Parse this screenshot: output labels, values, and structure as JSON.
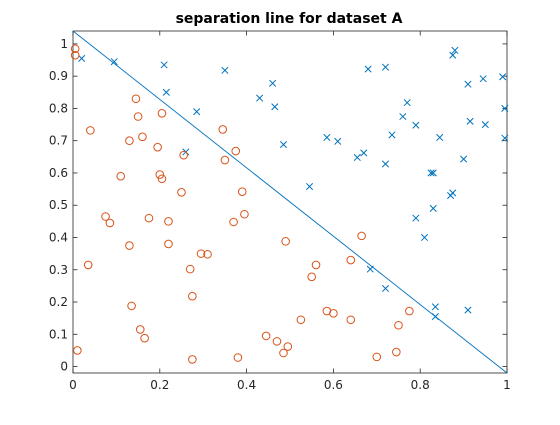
{
  "chart_data": {
    "type": "scatter",
    "title": "separation line for dataset A",
    "xlabel": "",
    "ylabel": "",
    "xlim": [
      0,
      1
    ],
    "ylim": [
      -0.02,
      1.04
    ],
    "x_ticks": [
      0,
      0.2,
      0.4,
      0.6,
      0.8,
      1
    ],
    "x_tick_labels": [
      "0",
      "0.2",
      "0.4",
      "0.6",
      "0.8",
      "1"
    ],
    "y_ticks": [
      0,
      0.1,
      0.2,
      0.3,
      0.4,
      0.5,
      0.6,
      0.7,
      0.8,
      0.9,
      1
    ],
    "y_tick_labels": [
      "0",
      "0.1",
      "0.2",
      "0.3",
      "0.4",
      "0.5",
      "0.6",
      "0.7",
      "0.8",
      "0.9",
      "1"
    ],
    "grid": false,
    "series": [
      {
        "marker": "x",
        "color": "#0072BD",
        "points": [
          [
            0.02,
            0.955
          ],
          [
            0.095,
            0.945
          ],
          [
            0.21,
            0.935
          ],
          [
            0.215,
            0.85
          ],
          [
            0.26,
            0.665
          ],
          [
            0.285,
            0.79
          ],
          [
            0.35,
            0.918
          ],
          [
            0.43,
            0.832
          ],
          [
            0.46,
            0.878
          ],
          [
            0.465,
            0.805
          ],
          [
            0.485,
            0.688
          ],
          [
            0.545,
            0.558
          ],
          [
            0.585,
            0.71
          ],
          [
            0.61,
            0.698
          ],
          [
            0.655,
            0.648
          ],
          [
            0.67,
            0.662
          ],
          [
            0.68,
            0.922
          ],
          [
            0.685,
            0.302
          ],
          [
            0.72,
            0.242
          ],
          [
            0.72,
            0.928
          ],
          [
            0.72,
            0.628
          ],
          [
            0.735,
            0.718
          ],
          [
            0.76,
            0.775
          ],
          [
            0.77,
            0.818
          ],
          [
            0.79,
            0.748
          ],
          [
            0.79,
            0.46
          ],
          [
            0.81,
            0.4
          ],
          [
            0.825,
            0.6
          ],
          [
            0.83,
            0.6
          ],
          [
            0.83,
            0.49
          ],
          [
            0.835,
            0.155
          ],
          [
            0.835,
            0.185
          ],
          [
            0.845,
            0.71
          ],
          [
            0.87,
            0.53
          ],
          [
            0.875,
            0.538
          ],
          [
            0.875,
            0.965
          ],
          [
            0.88,
            0.98
          ],
          [
            0.9,
            0.643
          ],
          [
            0.91,
            0.875
          ],
          [
            0.91,
            0.175
          ],
          [
            0.915,
            0.76
          ],
          [
            0.945,
            0.892
          ],
          [
            0.95,
            0.75
          ],
          [
            0.99,
            0.898
          ],
          [
            0.995,
            0.8
          ],
          [
            0.995,
            0.708
          ]
        ]
      },
      {
        "marker": "o",
        "color": "#D95319",
        "points": [
          [
            0.005,
            0.985
          ],
          [
            0.005,
            0.965
          ],
          [
            0.01,
            0.05
          ],
          [
            0.035,
            0.315
          ],
          [
            0.04,
            0.732
          ],
          [
            0.075,
            0.465
          ],
          [
            0.085,
            0.445
          ],
          [
            0.11,
            0.59
          ],
          [
            0.13,
            0.375
          ],
          [
            0.13,
            0.7
          ],
          [
            0.135,
            0.188
          ],
          [
            0.145,
            0.83
          ],
          [
            0.15,
            0.775
          ],
          [
            0.155,
            0.115
          ],
          [
            0.16,
            0.712
          ],
          [
            0.165,
            0.088
          ],
          [
            0.175,
            0.46
          ],
          [
            0.195,
            0.68
          ],
          [
            0.2,
            0.595
          ],
          [
            0.205,
            0.582
          ],
          [
            0.205,
            0.785
          ],
          [
            0.22,
            0.38
          ],
          [
            0.22,
            0.45
          ],
          [
            0.25,
            0.54
          ],
          [
            0.255,
            0.655
          ],
          [
            0.27,
            0.302
          ],
          [
            0.275,
            0.218
          ],
          [
            0.275,
            0.022
          ],
          [
            0.295,
            0.35
          ],
          [
            0.31,
            0.348
          ],
          [
            0.345,
            0.735
          ],
          [
            0.35,
            0.64
          ],
          [
            0.37,
            0.448
          ],
          [
            0.375,
            0.668
          ],
          [
            0.38,
            0.028
          ],
          [
            0.39,
            0.542
          ],
          [
            0.395,
            0.472
          ],
          [
            0.445,
            0.095
          ],
          [
            0.47,
            0.078
          ],
          [
            0.485,
            0.042
          ],
          [
            0.49,
            0.388
          ],
          [
            0.495,
            0.062
          ],
          [
            0.525,
            0.145
          ],
          [
            0.55,
            0.278
          ],
          [
            0.56,
            0.315
          ],
          [
            0.585,
            0.172
          ],
          [
            0.6,
            0.165
          ],
          [
            0.64,
            0.33
          ],
          [
            0.64,
            0.145
          ],
          [
            0.665,
            0.405
          ],
          [
            0.7,
            0.03
          ],
          [
            0.745,
            0.045
          ],
          [
            0.75,
            0.128
          ],
          [
            0.775,
            0.172
          ]
        ]
      }
    ],
    "separation_line": {
      "color": "#0072BD",
      "points": [
        [
          0,
          1.04
        ],
        [
          1,
          -0.02
        ]
      ]
    }
  }
}
